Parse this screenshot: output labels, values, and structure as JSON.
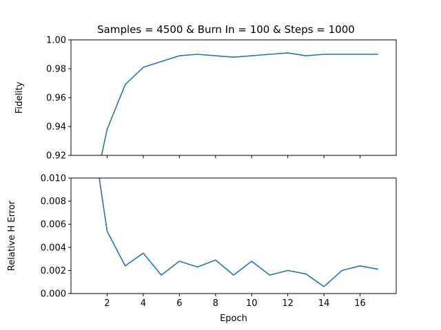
{
  "chart_data": [
    {
      "type": "line",
      "title": "Samples = 4500 & Burn In = 100 & Steps = 1000",
      "xlabel": "",
      "ylabel": "Fidelity",
      "xlim": [
        0,
        18
      ],
      "ylim": [
        0.92,
        1.0
      ],
      "xticks": [
        2,
        4,
        6,
        8,
        10,
        12,
        14,
        16
      ],
      "xtick_labels_visible": false,
      "yticks": [
        0.92,
        0.94,
        0.96,
        0.98,
        1.0
      ],
      "ytick_labels": [
        "0.92",
        "0.94",
        "0.96",
        "0.98",
        "1.00"
      ],
      "grid": false,
      "series": [
        {
          "color": "#1f77b4",
          "x": [
            1,
            2,
            3,
            4,
            5,
            6,
            7,
            8,
            9,
            10,
            11,
            12,
            13,
            14,
            15,
            16,
            17
          ],
          "y": [
            0.88,
            0.938,
            0.969,
            0.981,
            0.985,
            0.989,
            0.99,
            0.989,
            0.988,
            0.989,
            0.99,
            0.991,
            0.989,
            0.99,
            0.99,
            0.99,
            0.99
          ]
        }
      ]
    },
    {
      "type": "line",
      "title": "",
      "xlabel": "Epoch",
      "ylabel": "Relative H Error",
      "xlim": [
        0,
        18
      ],
      "ylim": [
        0.0,
        0.01
      ],
      "xticks": [
        2,
        4,
        6,
        8,
        10,
        12,
        14,
        16
      ],
      "xtick_labels": [
        "2",
        "4",
        "6",
        "8",
        "10",
        "12",
        "14",
        "16"
      ],
      "yticks": [
        0.0,
        0.002,
        0.004,
        0.006,
        0.008,
        0.01
      ],
      "ytick_labels": [
        "0.000",
        "0.002",
        "0.004",
        "0.006",
        "0.008",
        "0.010"
      ],
      "grid": false,
      "series": [
        {
          "color": "#1f77b4",
          "x": [
            1,
            2,
            3,
            4,
            5,
            6,
            7,
            8,
            9,
            10,
            11,
            12,
            13,
            14,
            15,
            16,
            17
          ],
          "y": [
            0.016,
            0.0054,
            0.0024,
            0.0035,
            0.0016,
            0.0028,
            0.0023,
            0.0029,
            0.0016,
            0.0028,
            0.0016,
            0.002,
            0.0017,
            0.0006,
            0.002,
            0.0024,
            0.0021
          ]
        }
      ]
    }
  ]
}
